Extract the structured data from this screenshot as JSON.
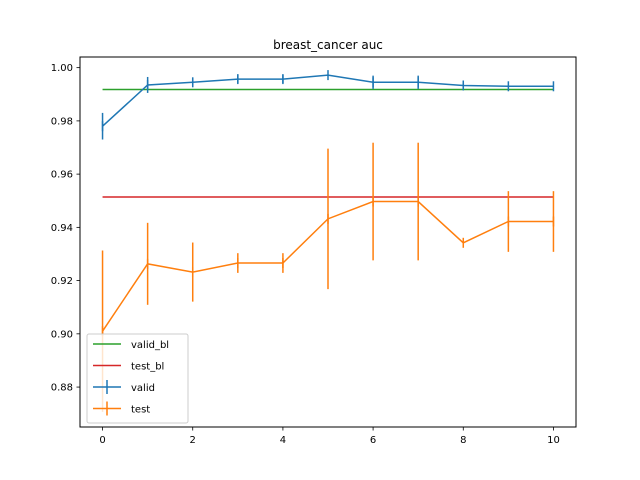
{
  "chart_data": {
    "type": "line",
    "title": "breast_cancer  auc",
    "xlabel": "",
    "ylabel": "",
    "xlim": [
      -0.5,
      10.5
    ],
    "ylim": [
      0.865,
      1.004
    ],
    "x_ticks": [
      0,
      2,
      4,
      6,
      8,
      10
    ],
    "y_ticks": [
      0.88,
      0.9,
      0.92,
      0.94,
      0.96,
      0.98,
      1.0
    ],
    "y_tick_labels": [
      "0.88",
      "0.90",
      "0.92",
      "0.94",
      "0.96",
      "0.98",
      "1.00"
    ],
    "x_tick_labels": [
      "0",
      "2",
      "4",
      "6",
      "8",
      "10"
    ],
    "grid": false,
    "legend_position": "lower-left",
    "baselines": [
      {
        "name": "valid_bl",
        "value": 0.9918,
        "color": "#2ca02c"
      },
      {
        "name": "test_bl",
        "value": 0.9514,
        "color": "#d62728"
      }
    ],
    "series": [
      {
        "name": "valid",
        "color": "#1f77b4",
        "x": [
          0,
          1,
          2,
          3,
          4,
          5,
          6,
          7,
          8,
          9,
          10
        ],
        "values": [
          0.978,
          0.9935,
          0.9945,
          0.9957,
          0.9957,
          0.9972,
          0.9945,
          0.9945,
          0.9933,
          0.993,
          0.993
        ],
        "errors": [
          0.005,
          0.003,
          0.0015,
          0.0015,
          0.0015,
          0.0,
          0.0025,
          0.0025,
          0.001,
          0.0,
          0.0
        ]
      },
      {
        "name": "test",
        "color": "#ff7f0e",
        "x": [
          0,
          1,
          2,
          3,
          4,
          5,
          6,
          7,
          8,
          9,
          10
        ],
        "values": [
          0.901,
          0.9263,
          0.9232,
          0.9266,
          0.9266,
          0.9432,
          0.9497,
          0.9497,
          0.9342,
          0.9422,
          0.9422
        ],
        "errors": [
          0.0303,
          0.0154,
          0.0111,
          0.0037,
          0.0037,
          0.0264,
          0.0221,
          0.0221,
          0.0,
          0.0114,
          0.0114
        ]
      }
    ]
  }
}
